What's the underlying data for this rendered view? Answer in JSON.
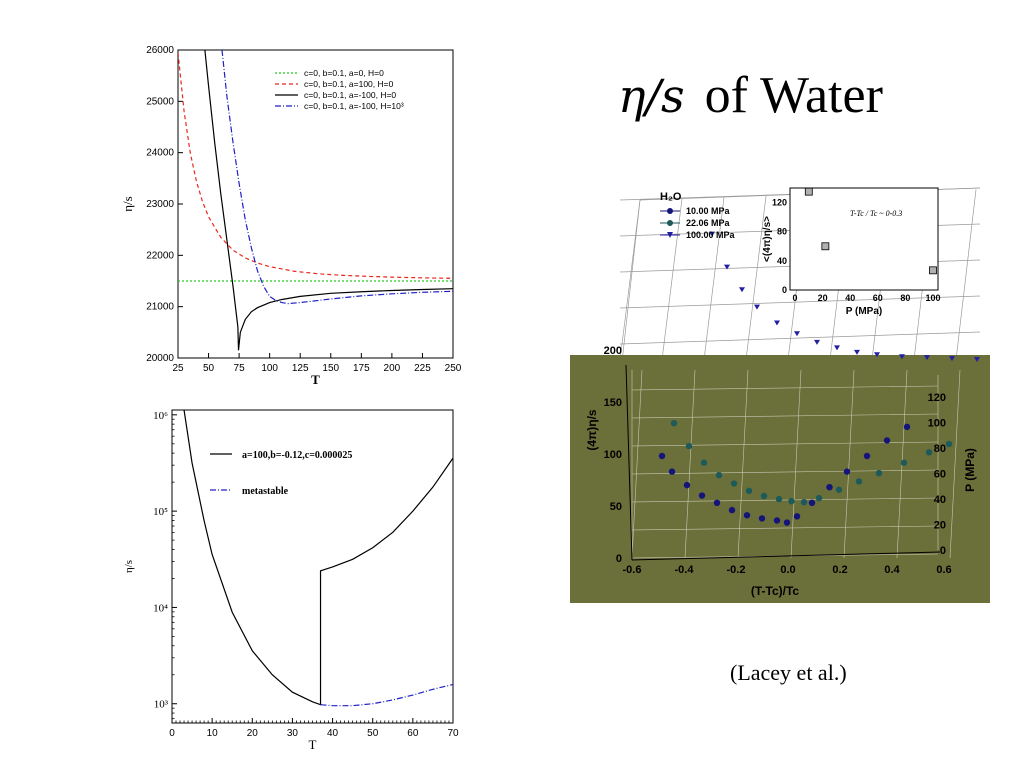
{
  "slide": {
    "title_symbol": "η/s",
    "title_text": "of Water",
    "citation": "(Lacey et al.)"
  },
  "colors": {
    "green_series": "#22cc22",
    "red_series": "#e8281e",
    "black_series": "#000000",
    "blue_series": "#2020c8",
    "navy_series": "#14147a",
    "teal_series": "#1e5a5a",
    "panel_olive": "#6b6f3a"
  },
  "chart_data": [
    {
      "type": "line",
      "title": "",
      "xlabel": "T",
      "ylabel": "η/s",
      "xlim": [
        25,
        250
      ],
      "ylim": [
        20000,
        26000
      ],
      "xticks": [
        25,
        50,
        75,
        100,
        125,
        150,
        175,
        200,
        225,
        250
      ],
      "yticks": [
        20000,
        21000,
        22000,
        23000,
        24000,
        25000,
        26000
      ],
      "grid": false,
      "legend_position": "top-right",
      "series": [
        {
          "name": "c=0, b=0.1, a=0, H=0",
          "color": "#22cc22",
          "style": "dotted",
          "x": [
            25,
            250
          ],
          "y": [
            21500,
            21500
          ]
        },
        {
          "name": "c=0, b=0.1, a=100, H=0",
          "color": "#e8281e",
          "style": "dashed",
          "x": [
            25,
            30,
            35,
            40,
            45,
            50,
            60,
            70,
            80,
            90,
            100,
            120,
            140,
            160,
            180,
            200,
            225,
            250
          ],
          "y": [
            25950,
            24800,
            24000,
            23450,
            23050,
            22750,
            22350,
            22100,
            21950,
            21850,
            21780,
            21690,
            21640,
            21610,
            21590,
            21575,
            21562,
            21552
          ]
        },
        {
          "name": "c=0, b=0.1, a=-100, H=0",
          "color": "#000000",
          "style": "solid",
          "x": [
            47,
            50,
            55,
            60,
            65,
            70,
            74,
            74.5,
            76,
            80,
            85,
            90,
            100,
            110,
            125,
            150,
            175,
            200,
            225,
            250
          ],
          "y": [
            26000,
            25300,
            24200,
            23200,
            22300,
            21400,
            20600,
            20150,
            20500,
            20750,
            20900,
            20980,
            21080,
            21140,
            21200,
            21260,
            21290,
            21315,
            21335,
            21350
          ]
        },
        {
          "name": "c=0, b=0.1, a=-100, H=10³",
          "color": "#2020c8",
          "style": "dashdot",
          "x": [
            61,
            65,
            70,
            75,
            80,
            85,
            90,
            95,
            100,
            105,
            110,
            115,
            120,
            125,
            150,
            175,
            200,
            225,
            250
          ],
          "y": [
            26000,
            25100,
            24200,
            23400,
            22700,
            22150,
            21700,
            21400,
            21200,
            21120,
            21080,
            21060,
            21070,
            21080,
            21150,
            21210,
            21250,
            21280,
            21300
          ]
        }
      ]
    },
    {
      "type": "line",
      "title": "",
      "xlabel": "T",
      "ylabel": "η/s",
      "xlim": [
        0,
        70
      ],
      "ylim_log10": [
        2.8,
        6.05
      ],
      "log_scale_y": true,
      "xticks": [
        0,
        10,
        20,
        30,
        40,
        50,
        60,
        70
      ],
      "yticks_labels": [
        "10³",
        "10⁴",
        "10⁵",
        "10⁶"
      ],
      "yticks_values_log10": [
        3,
        4,
        5,
        6
      ],
      "grid": false,
      "legend_position": "top-center",
      "series": [
        {
          "name": "a=100,b=-0.12,c=0.000025",
          "color": "#000000",
          "style": "solid",
          "x": [
            3,
            5,
            8,
            10,
            15,
            20,
            25,
            30,
            35,
            37,
            37,
            40,
            45,
            50,
            55,
            60,
            65,
            70
          ],
          "log10_y": [
            6.05,
            5.5,
            4.9,
            4.55,
            3.95,
            3.55,
            3.3,
            3.12,
            3.02,
            2.99,
            4.38,
            4.42,
            4.5,
            4.62,
            4.78,
            5.0,
            5.25,
            5.55
          ]
        },
        {
          "name": "metastable",
          "color": "#2020c8",
          "style": "dashdot",
          "x": [
            37,
            40,
            45,
            50,
            55,
            60,
            65,
            70
          ],
          "log10_y": [
            2.99,
            2.98,
            2.98,
            3.0,
            3.04,
            3.09,
            3.15,
            3.2
          ]
        }
      ]
    },
    {
      "type": "scatter",
      "title": "",
      "xlabel": "(T-Tc)/Tc",
      "ylabel": "(4π)η/s",
      "zlabel": "P (MPa)",
      "xlim": [
        -0.6,
        0.6
      ],
      "ylim": [
        0,
        200
      ],
      "zlim": [
        0,
        120
      ],
      "xticks": [
        "-0.6",
        "-0.4",
        "-0.2",
        "0.0",
        "0.2",
        "0.4",
        "0.6"
      ],
      "yticks": [
        "0",
        "50",
        "100",
        "150",
        "200"
      ],
      "zticks": [
        "0",
        "20",
        "40",
        "60",
        "80",
        "100",
        "120"
      ],
      "legend_title": "H₂O",
      "series": [
        {
          "name": "10.00 MPa",
          "marker": "circle",
          "color": "#14147a",
          "x": [
            -0.52,
            -0.48,
            -0.42,
            -0.36,
            -0.3,
            -0.24,
            -0.18,
            -0.12,
            -0.06,
            -0.02,
            0.02,
            0.08,
            0.15,
            0.22,
            0.3,
            0.38,
            0.46
          ],
          "y": [
            100,
            85,
            72,
            62,
            55,
            48,
            43,
            40,
            38,
            36,
            42,
            55,
            70,
            85,
            100,
            115,
            128
          ]
        },
        {
          "name": "22.06 MPa",
          "marker": "circle",
          "color": "#1e5a5a",
          "x": [
            -0.52,
            -0.46,
            -0.4,
            -0.34,
            -0.28,
            -0.22,
            -0.16,
            -0.1,
            -0.05,
            0.0,
            0.06,
            0.14,
            0.22,
            0.3,
            0.4,
            0.5,
            0.58
          ],
          "y": [
            120,
            98,
            82,
            70,
            62,
            55,
            50,
            47,
            45,
            44,
            48,
            56,
            64,
            72,
            82,
            92,
            100
          ]
        },
        {
          "name": "100.00 MPa",
          "marker": "triangle-down",
          "color": "#2020a0",
          "x": [
            -0.56,
            -0.5,
            -0.44,
            -0.38,
            -0.3,
            -0.22,
            -0.14,
            -0.06,
            0.02,
            0.1,
            0.2,
            0.3,
            0.4,
            0.5
          ],
          "y": [
            190,
            160,
            140,
            125,
            112,
            104,
            98,
            95,
            93,
            93,
            94,
            96,
            98,
            100
          ]
        }
      ],
      "inset": {
        "type": "scatter",
        "xlabel": "P (MPa)",
        "ylabel": "<(4π)η/s>",
        "annotation": "T-Tc / Tc ~ 0-0.3",
        "xlim": [
          0,
          100
        ],
        "ylim": [
          0,
          140
        ],
        "xticks": [
          "0",
          "20",
          "40",
          "60",
          "80",
          "100"
        ],
        "yticks": [
          "0",
          "40",
          "80",
          "120"
        ],
        "x": [
          10,
          22,
          100
        ],
        "y": [
          135,
          60,
          27
        ]
      }
    }
  ]
}
